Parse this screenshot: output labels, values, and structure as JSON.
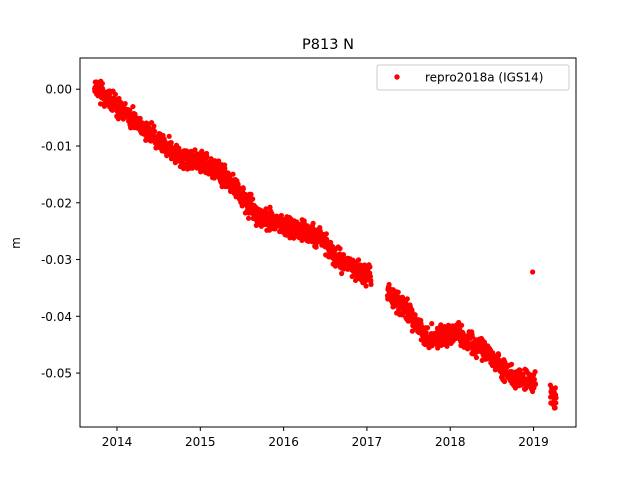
{
  "chart_data": {
    "type": "scatter",
    "title": "P813 N",
    "xlabel": "",
    "ylabel": "m",
    "xlim": [
      "2013-07-23",
      "2019-07-06"
    ],
    "ylim": [
      -0.0595,
      0.0055
    ],
    "x_ticks": [
      "2014",
      "2015",
      "2016",
      "2017",
      "2018",
      "2019"
    ],
    "y_ticks": [
      "0.00",
      "-0.01",
      "-0.02",
      "-0.03",
      "-0.04",
      "-0.05"
    ],
    "grid": false,
    "legend_position": "top-right",
    "series": [
      {
        "name": "repro2018a (IGS14)",
        "color": "#ff0000",
        "marker": "circle",
        "trend": [
          {
            "date": "2013-09-25",
            "value": 0.0005
          },
          {
            "date": "2014-01-01",
            "value": -0.003
          },
          {
            "date": "2014-06-01",
            "value": -0.008
          },
          {
            "date": "2014-10-01",
            "value": -0.012
          },
          {
            "date": "2015-02-01",
            "value": -0.013
          },
          {
            "date": "2015-06-01",
            "value": -0.017
          },
          {
            "date": "2015-09-01",
            "value": -0.022
          },
          {
            "date": "2016-01-01",
            "value": -0.024
          },
          {
            "date": "2016-06-01",
            "value": -0.026
          },
          {
            "date": "2016-09-01",
            "value": -0.03
          },
          {
            "date": "2017-01-10",
            "value": -0.033
          },
          {
            "date": "2017-04-10",
            "value": -0.036
          },
          {
            "date": "2017-08-01",
            "value": -0.041
          },
          {
            "date": "2017-10-01",
            "value": -0.044
          },
          {
            "date": "2018-02-01",
            "value": -0.043
          },
          {
            "date": "2018-06-01",
            "value": -0.046
          },
          {
            "date": "2018-10-01",
            "value": -0.051
          },
          {
            "date": "2019-01-01",
            "value": -0.052
          },
          {
            "date": "2019-04-10",
            "value": -0.055
          }
        ],
        "gaps": [
          {
            "from": "2017-01-20",
            "to": "2017-04-01"
          },
          {
            "from": "2019-01-10",
            "to": "2019-03-15"
          }
        ],
        "outliers": [
          {
            "date": "2018-12-28",
            "value": -0.0322
          }
        ]
      }
    ]
  }
}
